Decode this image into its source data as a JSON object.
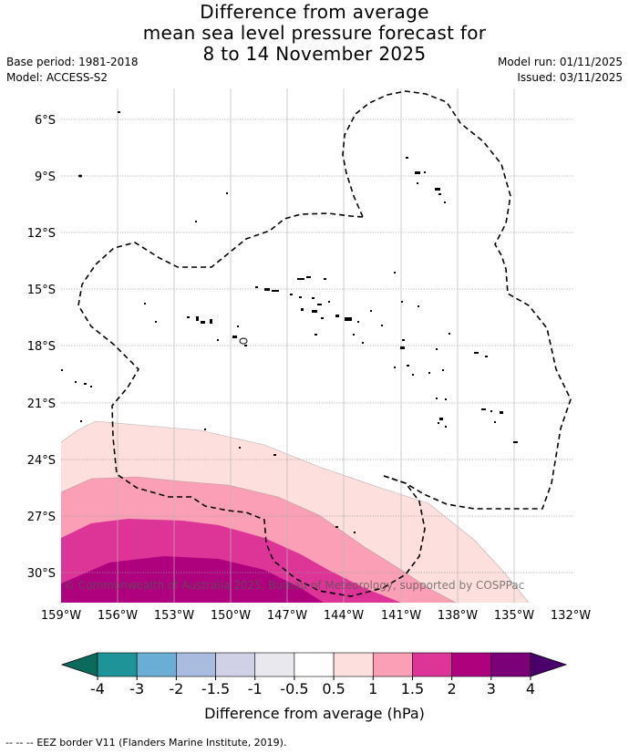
{
  "title": {
    "line1": "Difference from average",
    "line2": "mean sea level pressure forecast for",
    "line3": "8 to 14 November 2025"
  },
  "info": {
    "base_period": "Base period: 1981-2018",
    "model": "Model: ACCESS-S2",
    "model_run": "Model run: 01/11/2025",
    "issued": "Issued: 03/11/2025"
  },
  "map": {
    "latitudes": [
      "6°S",
      "9°S",
      "12°S",
      "15°S",
      "18°S",
      "21°S",
      "24°S",
      "27°S",
      "30°S"
    ],
    "longitudes": [
      "159°W",
      "156°W",
      "153°W",
      "150°W",
      "147°W",
      "144°W",
      "141°W",
      "138°W",
      "135°W",
      "132°W"
    ],
    "copyright": "© Commonwealth of Australia 2025, Bureau of Meteorology, supported by COSPPac"
  },
  "colorbar": {
    "ticks": [
      "-4",
      "-3",
      "-2",
      "-1.5",
      "-1",
      "-0.5",
      "0.5",
      "1",
      "1.5",
      "2",
      "3",
      "4"
    ],
    "colors": [
      "#1e9498",
      "#6aaed6",
      "#a9bcdf",
      "#d0d1e6",
      "#e9e8ee",
      "#ffffff",
      "#fde0dd",
      "#fa9fb5",
      "#dd3497",
      "#ae017e",
      "#7a0177"
    ],
    "extend_low_color": "#0b6a5c",
    "extend_high_color": "#49006a",
    "label": "Difference from average (hPa)"
  },
  "legend": {
    "eez_symbol": "--  --  --",
    "eez_text": "EEZ border V11 (Flanders Marine Institute, 2019)."
  }
}
